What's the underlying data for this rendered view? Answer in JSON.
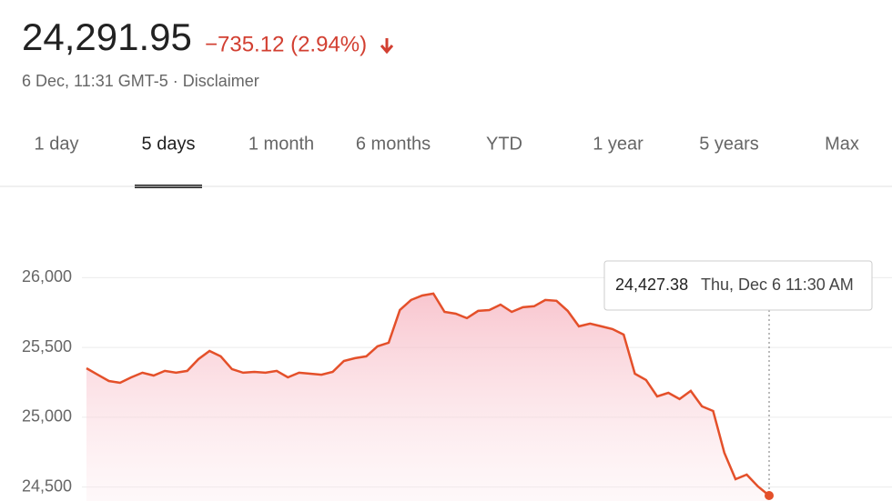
{
  "header": {
    "price": "24,291.95",
    "change": "−735.12 (2.94%)",
    "timestamp": "6 Dec, 11:31 GMT-5 · ",
    "disclaimer": "Disclaimer"
  },
  "tabs": {
    "items": [
      "1 day",
      "5 days",
      "1 month",
      "6 months",
      "YTD",
      "1 year",
      "5 years",
      "Max"
    ],
    "selected": 1
  },
  "tooltip": {
    "value": "24,427.38",
    "time": "Thu, Dec 6 11:30 AM"
  },
  "chart_data": {
    "type": "line",
    "color": "#e4502a",
    "grid": true,
    "ylim": [
      24400,
      26100
    ],
    "yticks": [
      {
        "value": 24500,
        "label": "24,500"
      },
      {
        "value": 25000,
        "label": "25,000"
      },
      {
        "value": 25500,
        "label": "25,500"
      },
      {
        "value": 26000,
        "label": "26,000"
      }
    ],
    "values": [
      25351,
      25305,
      25260,
      25247,
      25286,
      25319,
      25299,
      25332,
      25319,
      25332,
      25416,
      25475,
      25436,
      25345,
      25319,
      25325,
      25319,
      25332,
      25286,
      25319,
      25312,
      25305,
      25325,
      25403,
      25423,
      25436,
      25508,
      25534,
      25768,
      25840,
      25872,
      25886,
      25755,
      25742,
      25710,
      25762,
      25768,
      25807,
      25755,
      25788,
      25795,
      25840,
      25834,
      25762,
      25651,
      25671,
      25651,
      25632,
      25592,
      25312,
      25267,
      25149,
      25175,
      25130,
      25189,
      25078,
      25045,
      24745,
      24556,
      24589,
      24504,
      24439
    ]
  }
}
